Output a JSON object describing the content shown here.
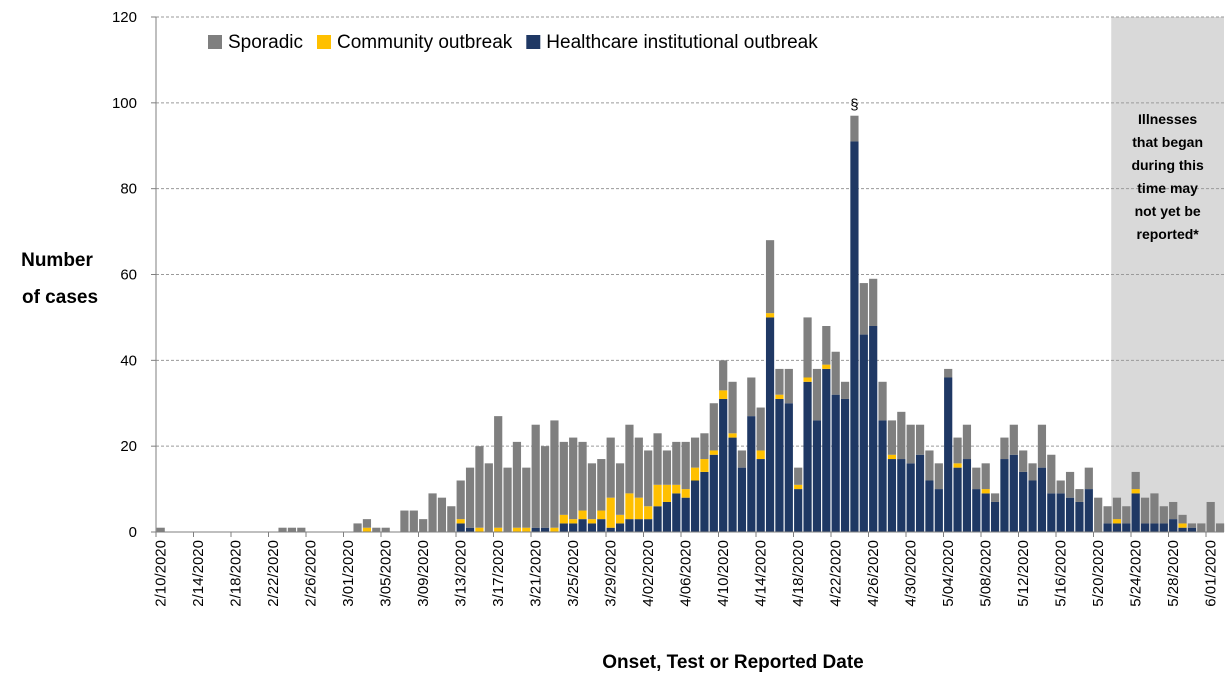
{
  "chart_data": {
    "type": "bar",
    "stacked": true,
    "xlabel": "Onset, Test or Reported Date",
    "ylabel": "Number of cases",
    "ylabel_lines": [
      "Number",
      "of cases"
    ],
    "ylim": [
      0,
      120
    ],
    "yticks": [
      0,
      20,
      40,
      60,
      80,
      100,
      120
    ],
    "grid": "horizontal dashed",
    "legend_position": "top-left",
    "x_start_date": "2/10/2020",
    "x_tick_labels": [
      "2/10/2020",
      "2/14/2020",
      "2/18/2020",
      "2/22/2020",
      "2/26/2020",
      "3/01/2020",
      "3/05/2020",
      "3/09/2020",
      "3/13/2020",
      "3/17/2020",
      "3/21/2020",
      "3/25/2020",
      "3/29/2020",
      "4/02/2020",
      "4/06/2020",
      "4/10/2020",
      "4/14/2020",
      "4/18/2020",
      "4/22/2020",
      "4/26/2020",
      "4/30/2020",
      "5/04/2020",
      "5/08/2020",
      "5/12/2020",
      "5/16/2020",
      "5/20/2020",
      "5/24/2020",
      "5/28/2020",
      "6/01/2020"
    ],
    "series": [
      {
        "name": "Healthcare institutional outbreak",
        "color": "#1f3864",
        "values": [
          0,
          0,
          0,
          0,
          0,
          0,
          0,
          0,
          0,
          0,
          0,
          0,
          0,
          0,
          0,
          0,
          0,
          0,
          0,
          0,
          0,
          0,
          0,
          0,
          0,
          0,
          0,
          0,
          0,
          0,
          0,
          0,
          2,
          1,
          0,
          0,
          0,
          0,
          0,
          0,
          1,
          1,
          0,
          2,
          2,
          3,
          2,
          3,
          1,
          2,
          3,
          3,
          3,
          6,
          7,
          9,
          8,
          12,
          14,
          18,
          31,
          22,
          15,
          27,
          17,
          50,
          31,
          30,
          10,
          35,
          26,
          38,
          32,
          31,
          91,
          46,
          48,
          26,
          17,
          17,
          16,
          18,
          12,
          10,
          36,
          15,
          17,
          10,
          9,
          7,
          17,
          18,
          14,
          12,
          15,
          9,
          9,
          8,
          7,
          10,
          0,
          2,
          2,
          2,
          9,
          2,
          2,
          2,
          3,
          1,
          1,
          0,
          0,
          0
        ]
      },
      {
        "name": "Community outbreak",
        "color": "#ffc000",
        "values": [
          0,
          0,
          0,
          0,
          0,
          0,
          0,
          0,
          0,
          0,
          0,
          0,
          0,
          0,
          0,
          0,
          0,
          0,
          0,
          0,
          0,
          0,
          1,
          0,
          0,
          0,
          0,
          0,
          0,
          0,
          0,
          0,
          1,
          0,
          1,
          0,
          1,
          0,
          1,
          1,
          0,
          0,
          1,
          2,
          1,
          2,
          1,
          2,
          7,
          2,
          6,
          5,
          3,
          5,
          4,
          2,
          2,
          3,
          3,
          1,
          2,
          1,
          0,
          0,
          2,
          1,
          1,
          0,
          1,
          1,
          0,
          1,
          0,
          0,
          0,
          0,
          0,
          0,
          1,
          0,
          0,
          0,
          0,
          0,
          0,
          1,
          0,
          0,
          1,
          0,
          0,
          0,
          0,
          0,
          0,
          0,
          0,
          0,
          0,
          0,
          0,
          0,
          1,
          0,
          1,
          0,
          0,
          0,
          0,
          1,
          0,
          0,
          0,
          0
        ]
      },
      {
        "name": "Sporadic",
        "color": "#7f7f7f",
        "values": [
          1,
          0,
          0,
          0,
          0,
          0,
          0,
          0,
          0,
          0,
          0,
          0,
          0,
          1,
          1,
          1,
          0,
          0,
          0,
          0,
          0,
          2,
          2,
          1,
          1,
          0,
          5,
          5,
          3,
          9,
          8,
          6,
          9,
          14,
          19,
          16,
          26,
          15,
          20,
          14,
          24,
          19,
          25,
          17,
          19,
          16,
          13,
          12,
          14,
          12,
          16,
          14,
          13,
          12,
          8,
          10,
          11,
          7,
          6,
          11,
          7,
          12,
          4,
          9,
          10,
          17,
          6,
          8,
          4,
          14,
          12,
          9,
          10,
          4,
          6,
          12,
          11,
          9,
          8,
          11,
          9,
          7,
          7,
          6,
          2,
          6,
          8,
          5,
          6,
          2,
          5,
          7,
          5,
          4,
          10,
          9,
          3,
          6,
          3,
          5,
          8,
          4,
          5,
          4,
          4,
          6,
          7,
          4,
          4,
          2,
          1,
          2,
          7,
          2
        ]
      }
    ],
    "legend_order": [
      "Sporadic",
      "Community outbreak",
      "Healthcare institutional outbreak"
    ],
    "annotations": {
      "peak_marker": "§",
      "shaded_region_start": "5/22/2020",
      "shaded_region_note": [
        "Illnesses",
        "that began",
        "during this",
        "time may",
        "not yet be",
        "reported*"
      ]
    }
  },
  "colors": {
    "sporadic": "#7f7f7f",
    "community": "#ffc000",
    "healthcare": "#1f3864",
    "shade": "#d9d9d9",
    "grid": "#9a9a9a"
  }
}
